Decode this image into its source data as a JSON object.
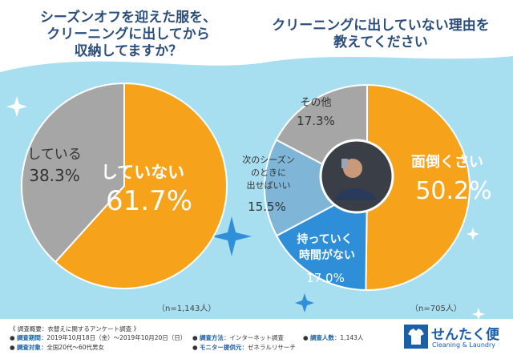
{
  "colors": {
    "orange": "#f7a21b",
    "gray": "#a6a6a6",
    "lightblue": "#7fb6d8",
    "blue": "#2e8fd8",
    "bg": "#a8dff0",
    "title": "#2c4e7c"
  },
  "left_title": [
    "シーズンオフを迎えた服を、",
    "クリーニングに出してから",
    "収納してますか？"
  ],
  "right_title": [
    "クリーニングに出していない理由を",
    "教えてください"
  ],
  "chart_data": [
    {
      "type": "pie",
      "title": "シーズンオフを迎えた服を、クリーニングに出してから収納してますか？",
      "slices": [
        {
          "label": "していない",
          "value": 61.7,
          "display": "61.7%"
        },
        {
          "label": "している",
          "value": 38.3,
          "display": "38.3%"
        }
      ],
      "sample": "（n=1,143人）"
    },
    {
      "type": "pie",
      "title": "クリーニングに出していない理由を教えてください",
      "slices": [
        {
          "label": "面倒くさい",
          "value": 50.2,
          "display": "50.2%"
        },
        {
          "label": "持っていく時間がない",
          "value": 17.0,
          "display": "17.0%"
        },
        {
          "label": "次のシーズンのときに出せばいい",
          "value": 15.5,
          "display": "15.5%"
        },
        {
          "label": "その他",
          "value": 17.3,
          "display": "17.3%"
        }
      ],
      "sample": "（n=705人）"
    }
  ],
  "footer": {
    "summary_label": "《 調査概要：衣替えに関するアンケート調査 》",
    "period_key": "調査期間",
    "period": "：2019年10月18日（金）〜2019年10月20日（日）",
    "method_key": "調査方法",
    "method": "：インターネット調査",
    "count_key": "調査人数",
    "count": "：1,143人",
    "target_key": "調査対象",
    "target": "：全国20代〜60代男女",
    "provider_key": "モニター提供元",
    "provider": "：ゼネラルリサーチ"
  },
  "logo": {
    "name": "せんたく便",
    "sub": "Cleaning & Laundry"
  }
}
